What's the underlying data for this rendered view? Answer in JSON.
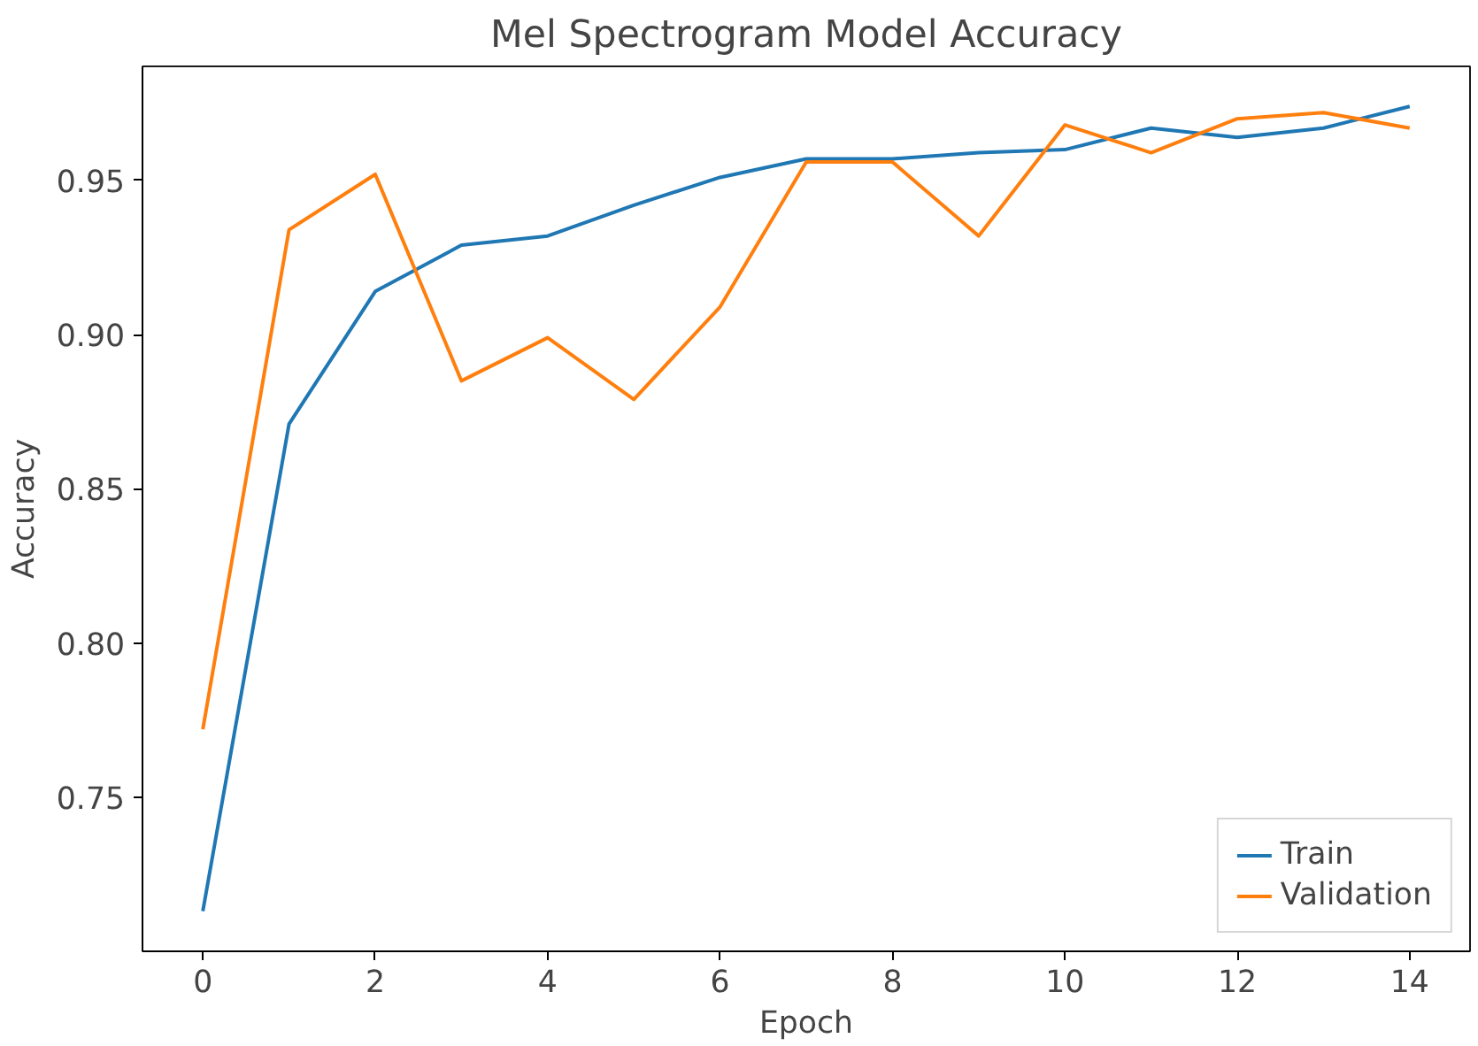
{
  "chart_data": {
    "type": "line",
    "title": "Mel Spectrogram Model Accuracy",
    "xlabel": "Epoch",
    "ylabel": "Accuracy",
    "x": [
      0,
      1,
      2,
      3,
      4,
      5,
      6,
      7,
      8,
      9,
      10,
      11,
      12,
      13,
      14
    ],
    "series": [
      {
        "name": "Train",
        "color": "#1f77b4",
        "values": [
          0.713,
          0.871,
          0.914,
          0.929,
          0.932,
          0.942,
          0.951,
          0.957,
          0.957,
          0.959,
          0.96,
          0.967,
          0.964,
          0.967,
          0.974
        ]
      },
      {
        "name": "Validation",
        "color": "#ff7f0e",
        "values": [
          0.772,
          0.934,
          0.952,
          0.885,
          0.899,
          0.879,
          0.909,
          0.956,
          0.956,
          0.932,
          0.968,
          0.959,
          0.97,
          0.972,
          0.967
        ]
      }
    ],
    "xlim": [
      -0.7,
      14.7
    ],
    "ylim": [
      0.7,
      0.987
    ],
    "xticks": [
      0,
      2,
      4,
      6,
      8,
      10,
      12,
      14
    ],
    "yticks": [
      {
        "value": 0.75,
        "label": "0.75"
      },
      {
        "value": 0.8,
        "label": "0.80"
      },
      {
        "value": 0.85,
        "label": "0.85"
      },
      {
        "value": 0.9,
        "label": "0.90"
      },
      {
        "value": 0.95,
        "label": "0.95"
      }
    ],
    "grid": false,
    "legend": "bottom right",
    "line_style": "solid"
  }
}
